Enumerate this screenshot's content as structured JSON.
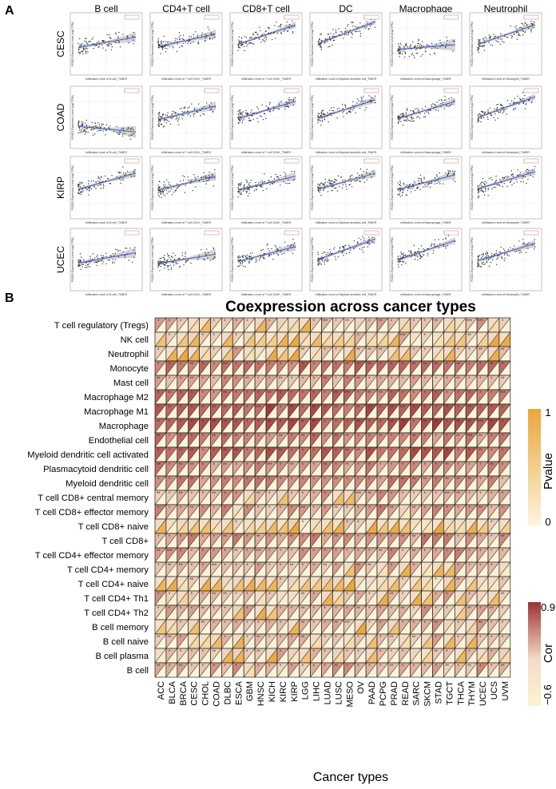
{
  "panel_a": {
    "label": "A",
    "columns": [
      "B cell",
      "CD4+T cell",
      "CD8+T cell",
      "DC",
      "Macrophage",
      "Neutrophil"
    ],
    "rows": [
      "CESC",
      "COAD",
      "KIRP",
      "UCEC"
    ],
    "y_axis_label": "FOXD1 Expression Level (log2 TPM)",
    "x_axis_labels": [
      "Infiltration Level of B cell_TIMER",
      "Infiltration Level of T cell CD4+_TIMER",
      "Infiltration Level of T cell CD8+_TIMER",
      "Infiltration Level of Myeloid dendritic cell_TIMER",
      "Infiltration Level of Macrophage_TIMER",
      "Infiltration Level of Neutrophil_TIMER"
    ],
    "slopes": [
      [
        0.45,
        0.55,
        0.85,
        0.95,
        0.2,
        0.85
      ],
      [
        -0.25,
        0.6,
        0.75,
        0.8,
        0.75,
        0.9
      ],
      [
        0.7,
        0.6,
        0.6,
        0.7,
        0.65,
        0.75
      ],
      [
        0.45,
        0.4,
        0.65,
        0.9,
        0.85,
        0.75
      ]
    ]
  },
  "panel_b": {
    "label": "B",
    "title": "Coexpression across cancer types",
    "xlabel": "Cancer types",
    "legend_pvalue": {
      "title": "Pvalue",
      "max_label": "1",
      "min_label": "0",
      "color_high": "#e9a63c",
      "color_low": "#fdf5dc"
    },
    "legend_cor": {
      "title": "Cor",
      "max_label": "0.9",
      "min_label": "−0.6",
      "color_high": "#9e3232",
      "color_low": "#fbf3cf"
    }
  },
  "chart_data": {
    "type": "heatmap",
    "rows": [
      "T cell regulatory (Tregs)",
      "NK cell",
      "Neutrophil",
      "Monocyte",
      "Mast cell",
      "Macrophage M2",
      "Macrophage M1",
      "Macrophage",
      "Endothelial cell",
      "Myeloid dendritic cell activated",
      "Plasmacytoid dendritic cell",
      "Myeloid dendritic cell",
      "T cell CD8+ central memory",
      "T cell CD8+ effector memory",
      "T cell CD8+ naive",
      "T cell CD8+",
      "T cell CD4+ effector memory",
      "T cell CD4+ memory",
      "T cell CD4+ naive",
      "T cell CD4+ Th1",
      "T cell CD4+ Th2",
      "B cell memory",
      "B cell naive",
      "B cell plasma",
      "B cell"
    ],
    "columns": [
      "ACC",
      "BLCA",
      "BRCA",
      "CESC",
      "CHOL",
      "COAD",
      "DLBC",
      "ESCA",
      "GBM",
      "HNSC",
      "KICH",
      "KIRC",
      "KIRP",
      "LGG",
      "LIHC",
      "LUAD",
      "LUSC",
      "MESO",
      "OV",
      "PAAD",
      "PCPG",
      "PRAD",
      "READ",
      "SARC",
      "SKCM",
      "STAD",
      "TGCT",
      "THCA",
      "THYM",
      "UCEC",
      "UCS",
      "UVM"
    ],
    "cor_range": [
      -0.6,
      0.9
    ],
    "pvalue_range": [
      0,
      1
    ],
    "significance_labels": [
      "***",
      "**",
      "*"
    ],
    "row_mean_cor": [
      0.2,
      0.05,
      0.1,
      0.55,
      0.3,
      0.55,
      0.65,
      0.7,
      0.45,
      0.6,
      0.4,
      0.4,
      0.25,
      0.3,
      0.05,
      0.35,
      0.3,
      0.2,
      0.05,
      0.15,
      0.2,
      0.2,
      0.15,
      0.15,
      0.3
    ]
  }
}
